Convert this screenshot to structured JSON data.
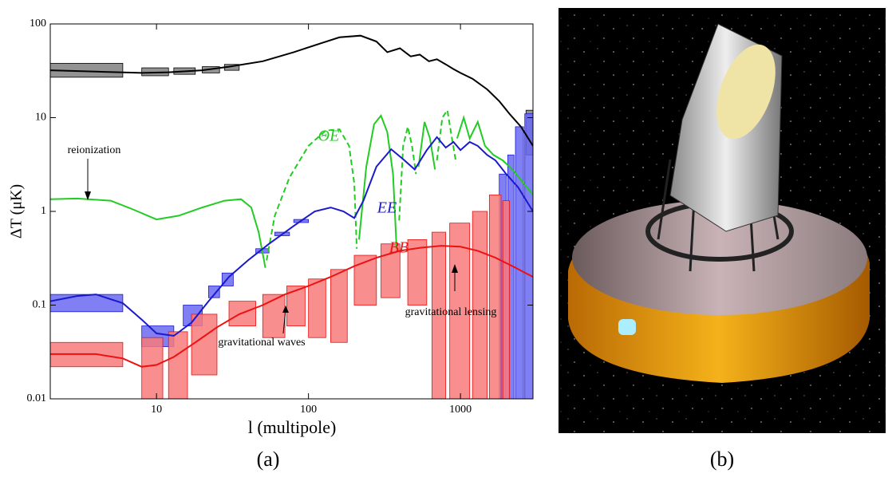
{
  "chart_data": {
    "type": "line",
    "xlabel": "l (multipole)",
    "ylabel": "ΔT (μK)",
    "xscale": "log",
    "yscale": "log",
    "xlim": [
      2,
      3000
    ],
    "ylim": [
      0.01,
      100
    ],
    "xticks": [
      10,
      100,
      1000
    ],
    "yticks": [
      0.01,
      0.1,
      1,
      10,
      100
    ],
    "annotations": [
      "reionization",
      "gravitational waves",
      "gravitational lensing"
    ],
    "captions": [
      "(a)",
      "(b)"
    ],
    "series": [
      {
        "color": "#000000",
        "x": [
          2,
          4,
          8,
          12,
          20,
          30,
          50,
          80,
          120,
          160,
          220,
          280,
          330,
          400,
          470,
          540,
          620,
          700,
          800,
          900,
          1000,
          1200,
          1500,
          1800,
          2100,
          2500,
          3000
        ],
        "values": [
          32,
          31,
          30,
          30.5,
          32,
          35,
          40,
          50,
          62,
          72,
          75,
          65,
          50,
          55,
          45,
          47,
          40,
          42,
          37,
          33,
          30,
          26,
          20,
          15,
          11,
          8,
          5
        ],
        "box_x": [
          [
            2,
            6
          ],
          [
            8,
            12
          ],
          [
            13,
            18
          ],
          [
            20,
            26
          ],
          [
            28,
            35
          ],
          [
            2700,
            3000
          ]
        ],
        "box_y": [
          [
            27,
            38
          ],
          [
            28,
            34
          ],
          [
            29,
            34
          ],
          [
            30,
            35
          ],
          [
            32,
            37
          ],
          [
            4,
            12
          ]
        ],
        "box_color": "#808080"
      },
      {
        "name": "ΘE",
        "color": "#22cc22",
        "x": [
          2,
          3,
          5,
          7,
          10,
          14,
          20,
          28,
          36,
          42,
          47,
          51,
          52
        ],
        "values": [
          1.35,
          1.37,
          1.3,
          1.05,
          0.82,
          0.9,
          1.1,
          1.3,
          1.35,
          1.1,
          0.6,
          0.3,
          0.25
        ]
      },
      {
        "color": "#22cc22",
        "dash": true,
        "x": [
          53,
          60,
          75,
          100,
          130,
          160,
          185,
          200,
          208
        ],
        "values": [
          0.3,
          0.9,
          2.3,
          5,
          7.3,
          7.5,
          5,
          2,
          0.4
        ]
      },
      {
        "color": "#22cc22",
        "x": [
          215,
          240,
          270,
          300,
          330,
          360,
          380
        ],
        "values": [
          0.5,
          3,
          8.5,
          10.5,
          7,
          2.5,
          0.4
        ]
      },
      {
        "color": "#22cc22",
        "dash": true,
        "x": [
          395,
          420,
          450,
          480,
          510
        ],
        "values": [
          0.8,
          5,
          8,
          5,
          2.5
        ]
      },
      {
        "color": "#22cc22",
        "x": [
          530,
          580,
          630,
          680
        ],
        "values": [
          3,
          9,
          6,
          2.8
        ]
      },
      {
        "color": "#22cc22",
        "dash": true,
        "x": [
          700,
          760,
          820,
          880,
          930
        ],
        "values": [
          3.5,
          10,
          12,
          6,
          3.5
        ]
      },
      {
        "color": "#22cc22",
        "x": [
          950,
          1050,
          1150,
          1300,
          1450,
          1650,
          1900,
          2200,
          2600,
          3000
        ],
        "values": [
          6,
          10,
          6,
          9,
          5,
          4,
          3.5,
          2.8,
          2,
          1.5
        ]
      },
      {
        "name": "EE",
        "color": "#1a1acc",
        "x": [
          2,
          3,
          4,
          6,
          8,
          10,
          13,
          17,
          22,
          30,
          40,
          55,
          80,
          110,
          140,
          170,
          200,
          230,
          280,
          350,
          420,
          500,
          600,
          700,
          800,
          900,
          1000,
          1150,
          1300,
          1500,
          1700,
          2000,
          2400,
          3000
        ],
        "values": [
          0.11,
          0.125,
          0.13,
          0.105,
          0.07,
          0.05,
          0.047,
          0.065,
          0.11,
          0.2,
          0.3,
          0.45,
          0.7,
          1.0,
          1.1,
          1.0,
          0.85,
          1.3,
          3,
          4.6,
          3.6,
          2.8,
          4.5,
          6.2,
          4.8,
          5.5,
          4.5,
          5.5,
          5,
          4,
          3.5,
          2.5,
          1.8,
          1
        ],
        "box_x": [
          [
            2,
            6
          ],
          [
            8,
            13
          ],
          [
            15,
            20
          ],
          [
            22,
            26
          ],
          [
            27,
            32
          ],
          [
            45,
            55
          ],
          [
            60,
            75
          ],
          [
            80,
            100
          ],
          [
            1800,
            2000
          ],
          [
            2050,
            2250
          ],
          [
            2300,
            2600
          ],
          [
            2650,
            3000
          ]
        ],
        "box_y": [
          [
            0.085,
            0.13
          ],
          [
            0.036,
            0.06
          ],
          [
            0.06,
            0.1
          ],
          [
            0.12,
            0.16
          ],
          [
            0.16,
            0.22
          ],
          [
            0.36,
            0.4
          ],
          [
            0.55,
            0.6
          ],
          [
            0.76,
            0.82
          ],
          [
            0.01,
            2.5
          ],
          [
            0.01,
            4
          ],
          [
            0.01,
            8
          ],
          [
            0.01,
            11
          ]
        ],
        "box_color": "#6a6af2"
      },
      {
        "name": "BB",
        "color": "#ee1111",
        "x": [
          2,
          4,
          6,
          8,
          10,
          13,
          18,
          25,
          35,
          50,
          70,
          100,
          140,
          200,
          280,
          400,
          550,
          750,
          1000,
          1300,
          1700,
          2200,
          3000
        ],
        "values": [
          0.03,
          0.03,
          0.027,
          0.022,
          0.023,
          0.028,
          0.04,
          0.058,
          0.08,
          0.1,
          0.13,
          0.16,
          0.2,
          0.26,
          0.32,
          0.38,
          0.41,
          0.43,
          0.42,
          0.38,
          0.32,
          0.26,
          0.2
        ],
        "box_x": [
          [
            2,
            6
          ],
          [
            8,
            11
          ],
          [
            12,
            16
          ],
          [
            17,
            25
          ],
          [
            30,
            45
          ],
          [
            50,
            70
          ],
          [
            72,
            95
          ],
          [
            100,
            130
          ],
          [
            140,
            180
          ],
          [
            200,
            280
          ],
          [
            300,
            400
          ],
          [
            450,
            600
          ],
          [
            650,
            800
          ],
          [
            850,
            1150
          ],
          [
            1200,
            1500
          ],
          [
            1550,
            1850
          ],
          [
            1900,
            2100
          ]
        ],
        "box_y": [
          [
            0.022,
            0.04
          ],
          [
            0.01,
            0.045
          ],
          [
            0.01,
            0.052
          ],
          [
            0.018,
            0.08
          ],
          [
            0.06,
            0.11
          ],
          [
            0.045,
            0.13
          ],
          [
            0.06,
            0.16
          ],
          [
            0.045,
            0.19
          ],
          [
            0.04,
            0.24
          ],
          [
            0.1,
            0.34
          ],
          [
            0.12,
            0.45
          ],
          [
            0.1,
            0.5
          ],
          [
            0.01,
            0.6
          ],
          [
            0.01,
            0.75
          ],
          [
            0.01,
            1.0
          ],
          [
            0.01,
            1.5
          ],
          [
            0.01,
            1.3
          ]
        ],
        "box_color": "#f77a7a"
      }
    ]
  }
}
